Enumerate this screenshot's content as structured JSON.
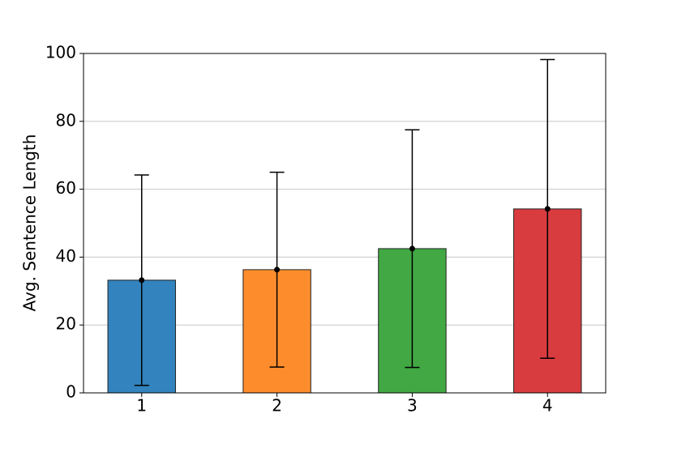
{
  "chart_data": {
    "type": "bar",
    "y_label": "Avg. Sentence Length",
    "categories": [
      "1",
      "2",
      "3",
      "4"
    ],
    "values": [
      33.2,
      36.3,
      42.5,
      54.2
    ],
    "errors": [
      31,
      28.7,
      35,
      44
    ],
    "colors": [
      "#3283be",
      "#fd8d2c",
      "#41a843",
      "#d93c3f"
    ],
    "ylim": [
      0,
      100
    ],
    "yticks": [
      0,
      20,
      40,
      60,
      80,
      100
    ],
    "grid": true
  }
}
